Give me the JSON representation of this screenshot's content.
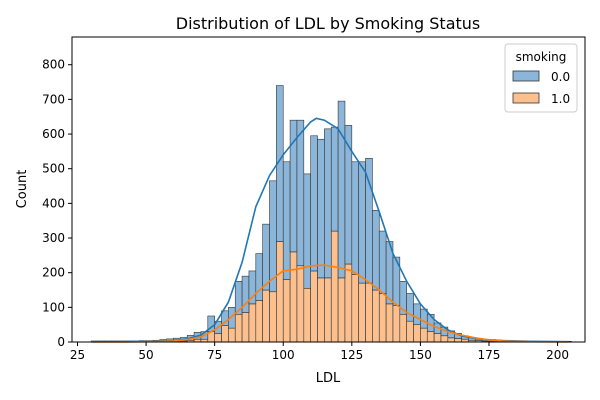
{
  "chart_data": {
    "type": "bar",
    "title": "Distribution of LDL by Smoking Status",
    "xlabel": "LDL",
    "ylabel": "Count",
    "xlim": [
      23,
      210
    ],
    "ylim": [
      0,
      880
    ],
    "xticks": [
      25,
      50,
      75,
      100,
      125,
      150,
      175,
      200
    ],
    "yticks": [
      0,
      100,
      200,
      300,
      400,
      500,
      600,
      700,
      800
    ],
    "bin_width": 2.5,
    "grid": false,
    "legend": {
      "title": "smoking",
      "placement": "top-right"
    },
    "colors": {
      "smoking_0_fill": "#8cb6d9",
      "smoking_1_fill": "#fbc08e",
      "smoking_0_kde": "#1f77b4",
      "smoking_1_kde": "#ff7f0e",
      "bar_edge": "#333333"
    },
    "series": [
      {
        "name": "0.0",
        "note_stack": "stacked on top of 1.0",
        "bins": [
          [
            30,
            2
          ],
          [
            32.5,
            2
          ],
          [
            35,
            2
          ],
          [
            37.5,
            2
          ],
          [
            40,
            2
          ],
          [
            42.5,
            2
          ],
          [
            45,
            2
          ],
          [
            47.5,
            3
          ],
          [
            50,
            3
          ],
          [
            52.5,
            4
          ],
          [
            55,
            5
          ],
          [
            57.5,
            6
          ],
          [
            60,
            8
          ],
          [
            62.5,
            10
          ],
          [
            65,
            14
          ],
          [
            67.5,
            20
          ],
          [
            70,
            22
          ],
          [
            72.5,
            45
          ],
          [
            75,
            35
          ],
          [
            77.5,
            42
          ],
          [
            80,
            60
          ],
          [
            82.5,
            95
          ],
          [
            85,
            105
          ],
          [
            87.5,
            95
          ],
          [
            90,
            135
          ],
          [
            92.5,
            190
          ],
          [
            95,
            320
          ],
          [
            97.5,
            450
          ],
          [
            100,
            340
          ],
          [
            102.5,
            380
          ],
          [
            105,
            420
          ],
          [
            107.5,
            330
          ],
          [
            110,
            390
          ],
          [
            112.5,
            400
          ],
          [
            115,
            430
          ],
          [
            117.5,
            300
          ],
          [
            120,
            510
          ],
          [
            122.5,
            400
          ],
          [
            125,
            325
          ],
          [
            127.5,
            350
          ],
          [
            130,
            360
          ],
          [
            132.5,
            230
          ],
          [
            135,
            180
          ],
          [
            137.5,
            180
          ],
          [
            140,
            140
          ],
          [
            142.5,
            95
          ],
          [
            145,
            80
          ],
          [
            147.5,
            60
          ],
          [
            150,
            55
          ],
          [
            152.5,
            50
          ],
          [
            155,
            30
          ],
          [
            157.5,
            25
          ],
          [
            160,
            20
          ],
          [
            162.5,
            15
          ],
          [
            165,
            10
          ],
          [
            167.5,
            8
          ],
          [
            170,
            6
          ],
          [
            172.5,
            5
          ],
          [
            175,
            4
          ],
          [
            177.5,
            3
          ],
          [
            180,
            2
          ],
          [
            182.5,
            2
          ],
          [
            185,
            2
          ],
          [
            187.5,
            1
          ],
          [
            190,
            1
          ],
          [
            192.5,
            1
          ],
          [
            195,
            1
          ],
          [
            197.5,
            1
          ],
          [
            200,
            1
          ],
          [
            202.5,
            1
          ]
        ]
      },
      {
        "name": "1.0",
        "bins": [
          [
            30,
            1
          ],
          [
            32.5,
            1
          ],
          [
            35,
            1
          ],
          [
            37.5,
            1
          ],
          [
            40,
            1
          ],
          [
            42.5,
            1
          ],
          [
            45,
            1
          ],
          [
            47.5,
            1
          ],
          [
            50,
            1
          ],
          [
            52.5,
            1
          ],
          [
            55,
            2
          ],
          [
            57.5,
            3
          ],
          [
            60,
            3
          ],
          [
            62.5,
            3
          ],
          [
            65,
            5
          ],
          [
            67.5,
            8
          ],
          [
            70,
            8
          ],
          [
            72.5,
            30
          ],
          [
            75,
            25
          ],
          [
            77.5,
            48
          ],
          [
            80,
            40
          ],
          [
            82.5,
            80
          ],
          [
            85,
            85
          ],
          [
            87.5,
            110
          ],
          [
            90,
            120
          ],
          [
            92.5,
            150
          ],
          [
            95,
            145
          ],
          [
            97.5,
            290
          ],
          [
            100,
            180
          ],
          [
            102.5,
            260
          ],
          [
            105,
            220
          ],
          [
            107.5,
            155
          ],
          [
            110,
            205
          ],
          [
            112.5,
            185
          ],
          [
            115,
            185
          ],
          [
            117.5,
            320
          ],
          [
            120,
            185
          ],
          [
            122.5,
            225
          ],
          [
            125,
            195
          ],
          [
            127.5,
            170
          ],
          [
            130,
            170
          ],
          [
            132.5,
            150
          ],
          [
            135,
            140
          ],
          [
            137.5,
            110
          ],
          [
            140,
            105
          ],
          [
            142.5,
            80
          ],
          [
            145,
            60
          ],
          [
            147.5,
            50
          ],
          [
            150,
            40
          ],
          [
            152.5,
            30
          ],
          [
            155,
            25
          ],
          [
            157.5,
            18
          ],
          [
            160,
            12
          ],
          [
            162.5,
            10
          ],
          [
            165,
            8
          ],
          [
            167.5,
            5
          ],
          [
            170,
            4
          ],
          [
            172.5,
            3
          ],
          [
            175,
            3
          ],
          [
            177.5,
            2
          ],
          [
            180,
            1
          ],
          [
            182.5,
            1
          ],
          [
            185,
            1
          ],
          [
            187.5,
            1
          ],
          [
            190,
            1
          ],
          [
            192.5,
            1
          ],
          [
            195,
            1
          ],
          [
            197.5,
            1
          ],
          [
            200,
            1
          ],
          [
            202.5,
            1
          ]
        ]
      }
    ],
    "kde": [
      {
        "name": "0.0",
        "points": [
          [
            30,
            1
          ],
          [
            40,
            1
          ],
          [
            50,
            2
          ],
          [
            60,
            4
          ],
          [
            65,
            9
          ],
          [
            70,
            20
          ],
          [
            75,
            50
          ],
          [
            80,
            115
          ],
          [
            85,
            230
          ],
          [
            90,
            390
          ],
          [
            95,
            480
          ],
          [
            100,
            540
          ],
          [
            105,
            590
          ],
          [
            110,
            635
          ],
          [
            112,
            645
          ],
          [
            115,
            640
          ],
          [
            120,
            615
          ],
          [
            125,
            550
          ],
          [
            130,
            490
          ],
          [
            135,
            375
          ],
          [
            140,
            255
          ],
          [
            145,
            175
          ],
          [
            150,
            110
          ],
          [
            155,
            65
          ],
          [
            160,
            35
          ],
          [
            165,
            18
          ],
          [
            170,
            10
          ],
          [
            175,
            6
          ],
          [
            180,
            4
          ],
          [
            190,
            2
          ],
          [
            204,
            1
          ]
        ]
      },
      {
        "name": "1.0",
        "points": [
          [
            30,
            0
          ],
          [
            40,
            0
          ],
          [
            50,
            1
          ],
          [
            60,
            3
          ],
          [
            65,
            7
          ],
          [
            70,
            15
          ],
          [
            75,
            35
          ],
          [
            80,
            65
          ],
          [
            85,
            100
          ],
          [
            90,
            140
          ],
          [
            95,
            175
          ],
          [
            100,
            205
          ],
          [
            105,
            210
          ],
          [
            110,
            220
          ],
          [
            115,
            222
          ],
          [
            120,
            215
          ],
          [
            125,
            205
          ],
          [
            130,
            180
          ],
          [
            135,
            150
          ],
          [
            140,
            115
          ],
          [
            145,
            85
          ],
          [
            150,
            65
          ],
          [
            155,
            45
          ],
          [
            160,
            30
          ],
          [
            165,
            20
          ],
          [
            170,
            12
          ],
          [
            175,
            6
          ],
          [
            180,
            3
          ],
          [
            190,
            1
          ],
          [
            204,
            0
          ]
        ]
      }
    ]
  }
}
